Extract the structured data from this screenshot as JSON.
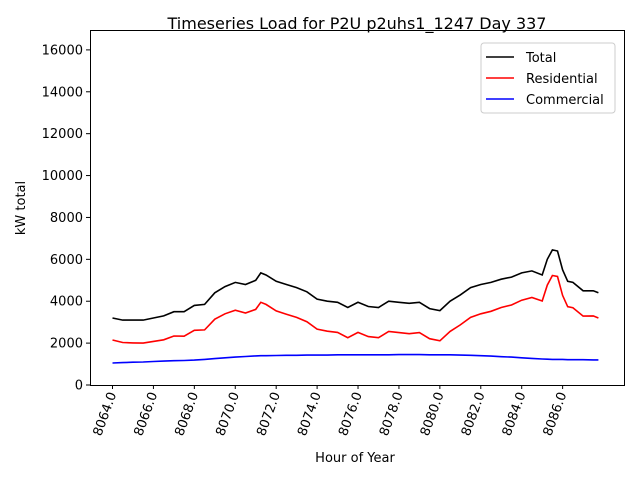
{
  "chart_data": {
    "type": "line",
    "title": "Timeseries Load for P2U p2uhs1_1247  Day 337",
    "xlabel": "Hour of Year",
    "ylabel": "kW total",
    "xlim": [
      8062.9,
      8089.0
    ],
    "ylim": [
      0,
      16950
    ],
    "xticks": [
      8064,
      8066,
      8068,
      8070,
      8072,
      8074,
      8076,
      8078,
      8080,
      8082,
      8084,
      8086
    ],
    "xtick_labels": [
      "8064.0",
      "8066.0",
      "8068.0",
      "8070.0",
      "8072.0",
      "8074.0",
      "8076.0",
      "8078.0",
      "8080.0",
      "8082.0",
      "8084.0",
      "8086.0"
    ],
    "yticks": [
      0,
      2000,
      4000,
      6000,
      8000,
      10000,
      12000,
      14000,
      16000
    ],
    "ytick_labels": [
      "0",
      "2000",
      "4000",
      "6000",
      "8000",
      "10000",
      "12000",
      "14000",
      "16000"
    ],
    "legend_position": "top-right",
    "grid": false,
    "x": [
      8064,
      8064.5,
      8065,
      8065.5,
      8066,
      8066.5,
      8067,
      8067.5,
      8068,
      8068.5,
      8069,
      8069.5,
      8070,
      8070.5,
      8071,
      8071.25,
      8071.5,
      8072,
      8072.5,
      8073,
      8073.5,
      8074,
      8074.5,
      8075,
      8075.5,
      8076,
      8076.5,
      8077,
      8077.5,
      8078,
      8078.5,
      8079,
      8079.5,
      8080,
      8080.5,
      8081,
      8081.5,
      8082,
      8082.5,
      8083,
      8083.5,
      8084,
      8084.5,
      8085,
      8085.25,
      8085.5,
      8085.75,
      8086,
      8086.25,
      8086.5,
      8087,
      8087.5,
      8087.75
    ],
    "series": [
      {
        "name": "Total",
        "color": "#000000",
        "values": [
          3200,
          3100,
          3100,
          3100,
          3200,
          3300,
          3500,
          3500,
          3800,
          3850,
          4400,
          4700,
          4900,
          4800,
          5000,
          5350,
          5250,
          4950,
          4800,
          4650,
          4450,
          4100,
          4000,
          3950,
          3700,
          3950,
          3750,
          3700,
          4000,
          3950,
          3900,
          3950,
          3650,
          3550,
          4000,
          4300,
          4650,
          4800,
          4900,
          5050,
          5150,
          5350,
          5450,
          5250,
          6000,
          6450,
          6400,
          5500,
          4950,
          4900,
          4500,
          4500,
          4400
        ]
      },
      {
        "name": "Residential",
        "color": "#ff0000",
        "values": [
          2150,
          2030,
          2010,
          2000,
          2080,
          2160,
          2340,
          2330,
          2610,
          2630,
          3140,
          3400,
          3570,
          3440,
          3610,
          3950,
          3850,
          3540,
          3380,
          3230,
          3020,
          2670,
          2570,
          2510,
          2260,
          2510,
          2310,
          2260,
          2560,
          2500,
          2450,
          2500,
          2210,
          2110,
          2560,
          2870,
          3230,
          3400,
          3520,
          3700,
          3820,
          4050,
          4180,
          4010,
          4770,
          5230,
          5180,
          4280,
          3740,
          3690,
          3290,
          3300,
          3200
        ]
      },
      {
        "name": "Commercial",
        "color": "#0000ff",
        "values": [
          1050,
          1070,
          1090,
          1100,
          1120,
          1140,
          1160,
          1170,
          1190,
          1220,
          1260,
          1300,
          1330,
          1360,
          1390,
          1400,
          1400,
          1410,
          1420,
          1420,
          1430,
          1430,
          1430,
          1440,
          1440,
          1440,
          1440,
          1440,
          1440,
          1450,
          1450,
          1450,
          1440,
          1440,
          1440,
          1430,
          1420,
          1400,
          1380,
          1350,
          1330,
          1300,
          1270,
          1240,
          1230,
          1220,
          1220,
          1220,
          1210,
          1210,
          1210,
          1200,
          1200
        ]
      }
    ]
  }
}
